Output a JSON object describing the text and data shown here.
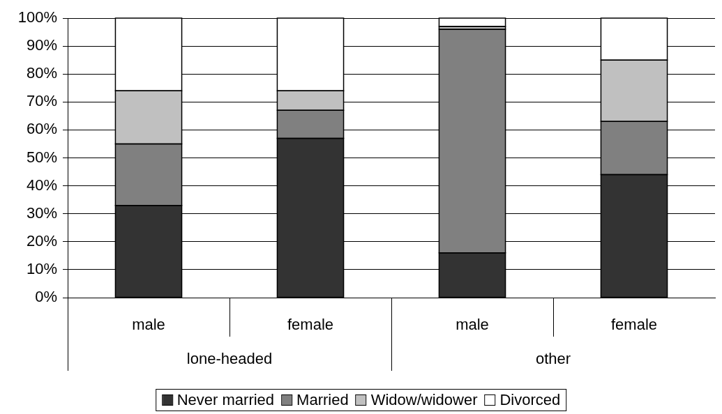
{
  "chart_data": {
    "type": "bar",
    "stacked": true,
    "categories": [
      "male",
      "female",
      "male",
      "female"
    ],
    "annotations": [
      "lone-headed",
      "other"
    ],
    "series": [
      {
        "name": "Never married",
        "color": "#333333",
        "values": [
          33,
          57,
          16,
          44
        ]
      },
      {
        "name": "Married",
        "color": "#808080",
        "values": [
          22,
          10,
          80,
          19
        ]
      },
      {
        "name": "Widow/widower",
        "color": "#c0c0c0",
        "values": [
          19,
          7,
          1,
          22
        ]
      },
      {
        "name": "Divorced",
        "color": "#ffffff",
        "values": [
          26,
          26,
          3,
          15
        ]
      }
    ],
    "ylim": [
      0,
      100
    ],
    "yticks": [
      {
        "value": 0,
        "label": "0%"
      },
      {
        "value": 10,
        "label": "10%"
      },
      {
        "value": 20,
        "label": "20%"
      },
      {
        "value": 30,
        "label": "30%"
      },
      {
        "value": 40,
        "label": "40%"
      },
      {
        "value": 50,
        "label": "50%"
      },
      {
        "value": 60,
        "label": "60%"
      },
      {
        "value": 70,
        "label": "70%"
      },
      {
        "value": 80,
        "label": "80%"
      },
      {
        "value": 90,
        "label": "90%"
      },
      {
        "value": 100,
        "label": "100%"
      }
    ],
    "grid": "y",
    "legend": "bottom"
  }
}
